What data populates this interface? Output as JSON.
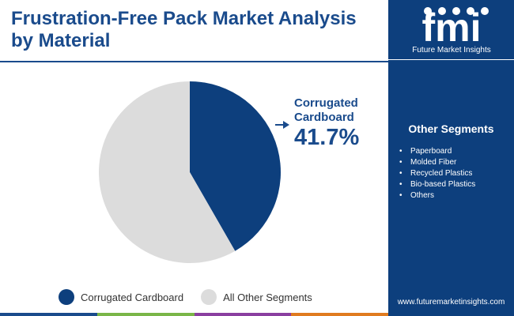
{
  "title": "Frustration-Free Pack Market Analysis by Material",
  "brand": {
    "logo_text": "fmi",
    "name": "Future Market Insights",
    "website": "www.futuremarketinsights.com"
  },
  "sidebar": {
    "heading": "Other Segments",
    "items": [
      "Paperboard",
      "Molded Fiber",
      "Recycled Plastics",
      "Bio-based Plastics",
      "Others"
    ]
  },
  "callout": {
    "label": "Corrugated Cardboard",
    "value": "41.7%"
  },
  "chart_data": {
    "type": "pie",
    "title": "Frustration-Free Pack Market Analysis by Material",
    "slices": [
      {
        "name": "Corrugated Cardboard",
        "value": 41.7,
        "color": "#0d3f7d"
      },
      {
        "name": "All Other Segments",
        "value": 58.3,
        "color": "#dcdcdc"
      }
    ],
    "start_angle_deg": 0,
    "direction": "clockwise",
    "legend_position": "bottom"
  },
  "colors": {
    "primary": "#0d3f7d",
    "secondary": "#dcdcdc",
    "bottom_bar": [
      "#1a4b8c",
      "#7ab648",
      "#8a3fa0",
      "#e07b1f"
    ]
  }
}
